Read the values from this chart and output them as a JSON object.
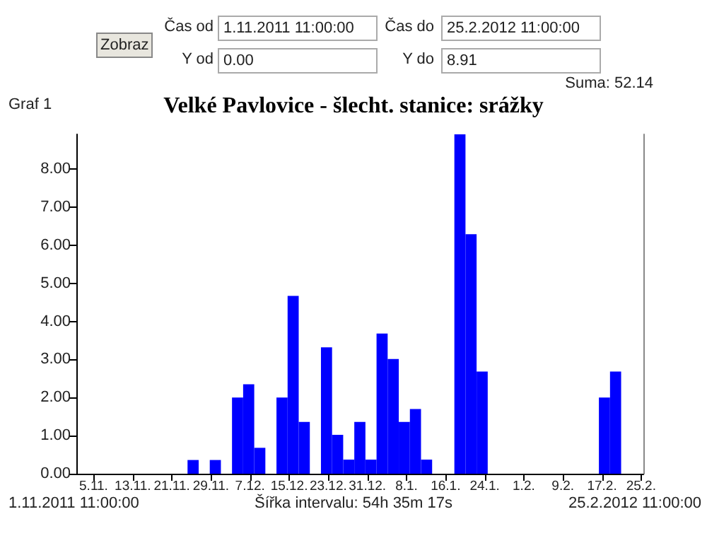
{
  "chart_data": {
    "type": "histogram",
    "title": "Velké Pavlovice - šlecht. stanice: srážky",
    "annotations": [
      "Zobraz",
      "Čas od",
      "1.11.2011 11:00:00",
      "Čas do",
      "25.2.2012 11:00:00",
      "Y od",
      "0.00",
      "Y do",
      "8.91",
      "Suma: 52.14",
      "Graf 1",
      "1.11.2011 11:00:00",
      "Šířka intervalu: 54h 35m 17s",
      "25.2.2012 11:00:00"
    ],
    "bins": [
      "2011-11-01T11:00",
      "2011-11-03T17:35",
      "2011-11-06T00:11",
      "2011-11-08T06:46",
      "2011-11-10T13:21",
      "2011-11-12T19:56",
      "2011-11-15T02:32",
      "2011-11-17T09:07",
      "2011-11-19T15:42",
      "2011-11-21T22:18",
      "2011-11-24T04:53",
      "2011-11-26T11:28",
      "2011-11-28T18:03",
      "2011-12-01T00:39",
      "2011-12-03T07:14",
      "2011-12-05T13:49",
      "2011-12-07T20:25",
      "2011-12-10T03:00",
      "2011-12-12T09:35",
      "2011-12-14T16:10",
      "2011-12-16T22:46",
      "2011-12-19T05:21",
      "2011-12-21T11:56",
      "2011-12-23T18:32",
      "2011-12-26T01:07",
      "2011-12-28T07:42",
      "2011-12-30T14:17",
      "2012-01-01T20:53",
      "2012-01-04T03:28",
      "2012-01-06T10:03",
      "2012-01-08T16:39",
      "2012-01-10T23:14",
      "2012-01-13T05:49",
      "2012-01-15T12:24",
      "2012-01-17T19:00",
      "2012-01-20T01:35",
      "2012-01-22T08:10",
      "2012-01-24T14:45",
      "2012-01-26T21:21",
      "2012-01-29T03:56",
      "2012-01-31T10:31",
      "2012-02-02T17:07",
      "2012-02-04T23:42",
      "2012-02-07T06:17",
      "2012-02-09T12:52",
      "2012-02-11T19:28",
      "2012-02-14T02:03",
      "2012-02-16T08:38",
      "2012-02-18T15:14",
      "2012-02-20T21:49",
      "2012-02-23T04:24",
      "2012-02-25T11:00"
    ],
    "values": [
      0,
      0,
      0,
      0,
      0,
      0,
      0,
      0,
      0,
      0,
      0.36,
      0,
      0.36,
      0,
      2.0,
      2.35,
      0.68,
      0,
      2.0,
      4.67,
      1.36,
      0,
      3.32,
      1.02,
      0.37,
      1.36,
      0.37,
      3.68,
      3.01,
      1.36,
      1.7,
      0.37,
      0,
      0,
      8.91,
      6.29,
      2.68,
      0,
      0,
      0,
      0,
      0,
      0,
      0,
      0,
      0,
      0,
      2.0,
      2.68,
      0,
      0
    ],
    "color": "#0000ff",
    "xlim": [
      "2011-11-01T11:00",
      "2012-02-25T11:00"
    ],
    "xticks": [
      {
        "value": "2011-11-05",
        "label": "5.11."
      },
      {
        "value": "2011-11-13",
        "label": "13.11."
      },
      {
        "value": "2011-11-21",
        "label": "21.11."
      },
      {
        "value": "2011-11-29",
        "label": "29.11."
      },
      {
        "value": "2011-12-07",
        "label": "7.12."
      },
      {
        "value": "2011-12-15",
        "label": "15.12."
      },
      {
        "value": "2011-12-23",
        "label": "23.12."
      },
      {
        "value": "2011-12-31",
        "label": "31.12."
      },
      {
        "value": "2012-01-08",
        "label": "8.1."
      },
      {
        "value": "2012-01-16",
        "label": "16.1."
      },
      {
        "value": "2012-01-24",
        "label": "24.1."
      },
      {
        "value": "2012-02-01",
        "label": "1.2."
      },
      {
        "value": "2012-02-09",
        "label": "9.2."
      },
      {
        "value": "2012-02-17",
        "label": "17.2."
      },
      {
        "value": "2012-02-25",
        "label": "25.2."
      }
    ],
    "ylim": [
      0,
      8.91
    ],
    "yticks": [
      {
        "value": 0,
        "label": "0.00"
      },
      {
        "value": 1,
        "label": "1.00"
      },
      {
        "value": 2,
        "label": "2.00"
      },
      {
        "value": 3,
        "label": "3.00"
      },
      {
        "value": 4,
        "label": "4.00"
      },
      {
        "value": 5,
        "label": "5.00"
      },
      {
        "value": 6,
        "label": "6.00"
      },
      {
        "value": 7,
        "label": "7.00"
      },
      {
        "value": 8,
        "label": "8.00"
      }
    ],
    "grid": false
  }
}
